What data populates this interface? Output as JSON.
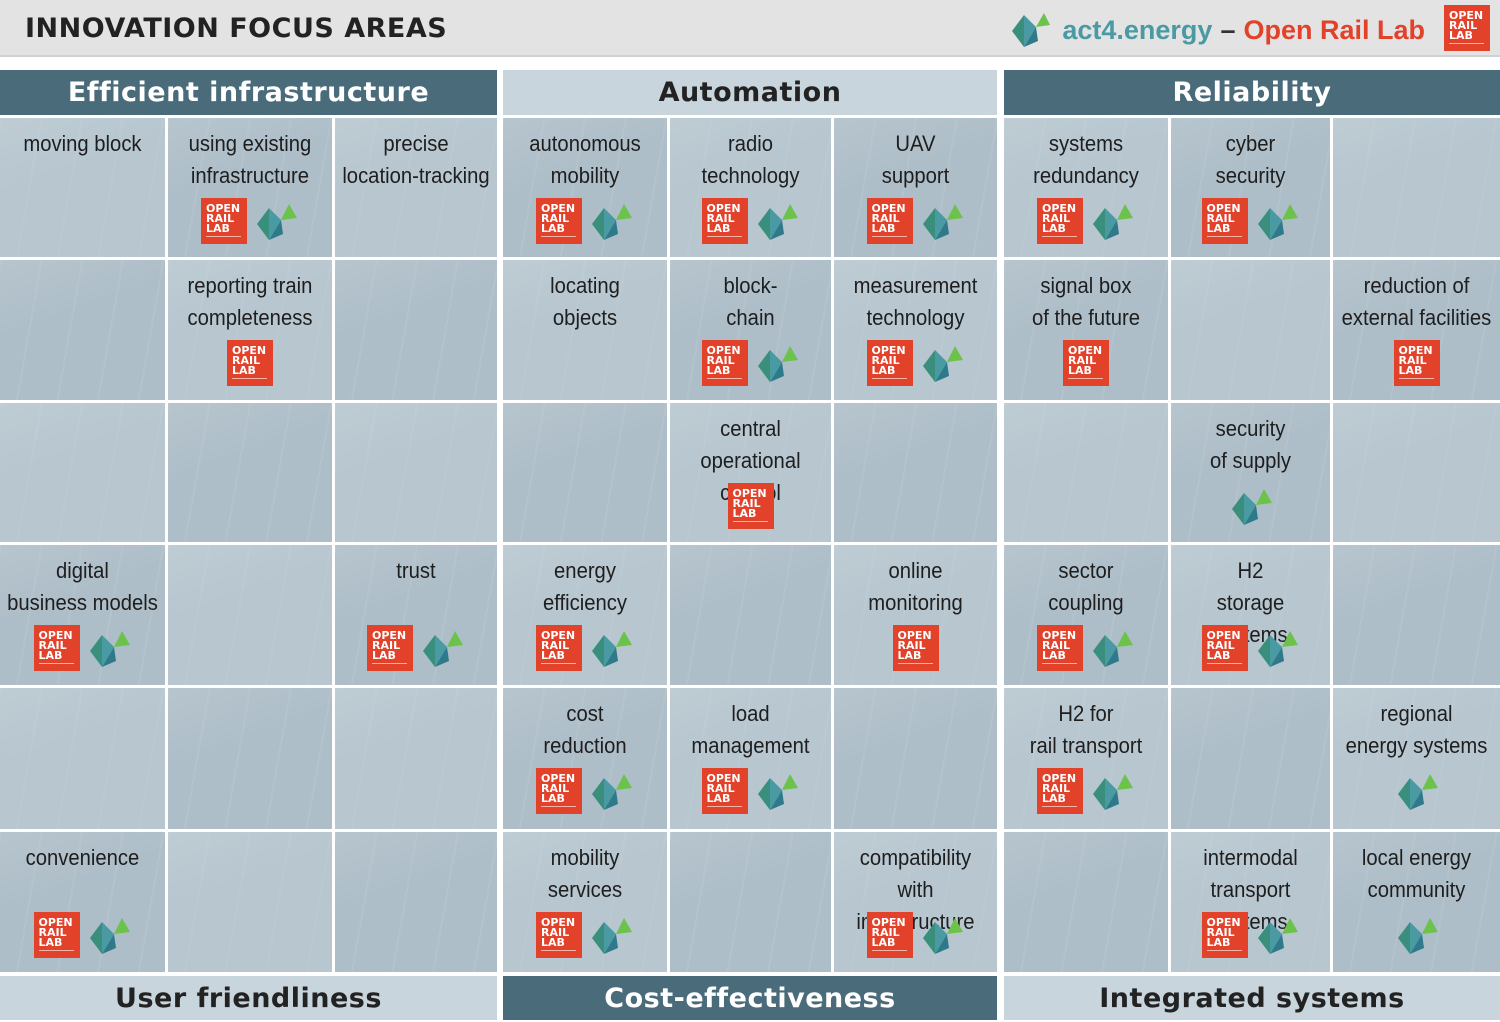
{
  "header": {
    "title": "INNOVATION FOCUS AREAS",
    "brand_act": "act4.energy",
    "brand_dash": "–",
    "brand_orl": "Open Rail Lab"
  },
  "orl_logo_text": [
    "OPEN",
    "RAIL",
    "LAB"
  ],
  "colors": {
    "dark_band": "#4a6b7a",
    "light_band": "#c9d5dc",
    "orl_red": "#e2412a",
    "act_teal": "#4a9aa3",
    "act_green": "#6cc24a"
  },
  "bands_top": [
    {
      "label": "Efficient infrastructure",
      "style": "dark"
    },
    {
      "label": "Automation",
      "style": "light"
    },
    {
      "label": "Reliability",
      "style": "dark"
    }
  ],
  "bands_bottom": [
    {
      "label": "User friendliness",
      "style": "light"
    },
    {
      "label": "Cost-effectiveness",
      "style": "dark"
    },
    {
      "label": "Integrated systems",
      "style": "light"
    }
  ],
  "rows": [
    [
      {
        "label": "moving block",
        "orl": false,
        "act": false
      },
      {
        "label": "using existing\ninfrastructure",
        "orl": true,
        "act": true
      },
      {
        "label": "precise\nlocation-tracking",
        "orl": false,
        "act": false
      },
      {
        "label": "autonomous\nmobility",
        "orl": true,
        "act": true
      },
      {
        "label": "radio\ntechnology",
        "orl": true,
        "act": true
      },
      {
        "label": "UAV\nsupport",
        "orl": true,
        "act": true
      },
      {
        "label": "systems\nredundancy",
        "orl": true,
        "act": true
      },
      {
        "label": "cyber\nsecurity",
        "orl": true,
        "act": true
      },
      {
        "label": "",
        "orl": false,
        "act": false
      }
    ],
    [
      {
        "label": "",
        "orl": false,
        "act": false
      },
      {
        "label": "reporting train\ncompleteness",
        "orl": true,
        "act": false
      },
      {
        "label": "",
        "orl": false,
        "act": false
      },
      {
        "label": "locating\nobjects",
        "orl": false,
        "act": false
      },
      {
        "label": "block-\nchain",
        "orl": true,
        "act": true
      },
      {
        "label": "measurement\ntechnology",
        "orl": true,
        "act": true
      },
      {
        "label": "signal box\nof the future",
        "orl": true,
        "act": false
      },
      {
        "label": "",
        "orl": false,
        "act": false
      },
      {
        "label": "reduction of\nexternal facilities",
        "orl": true,
        "act": false
      }
    ],
    [
      {
        "label": "",
        "orl": false,
        "act": false
      },
      {
        "label": "",
        "orl": false,
        "act": false
      },
      {
        "label": "",
        "orl": false,
        "act": false
      },
      {
        "label": "",
        "orl": false,
        "act": false
      },
      {
        "label": "central\noperational control",
        "orl": true,
        "act": false
      },
      {
        "label": "",
        "orl": false,
        "act": false
      },
      {
        "label": "",
        "orl": false,
        "act": false
      },
      {
        "label": "security\nof supply",
        "orl": false,
        "act": true
      },
      {
        "label": "",
        "orl": false,
        "act": false
      }
    ],
    [
      {
        "label": "digital\nbusiness models",
        "orl": true,
        "act": true
      },
      {
        "label": "",
        "orl": false,
        "act": false
      },
      {
        "label": "trust",
        "orl": true,
        "act": true
      },
      {
        "label": "energy\nefficiency",
        "orl": true,
        "act": true
      },
      {
        "label": "",
        "orl": false,
        "act": false
      },
      {
        "label": "online\nmonitoring",
        "orl": true,
        "act": false
      },
      {
        "label": "sector\ncoupling",
        "orl": true,
        "act": true
      },
      {
        "label": "H2\nstorage systems",
        "orl": true,
        "act": true
      },
      {
        "label": "",
        "orl": false,
        "act": false
      }
    ],
    [
      {
        "label": "",
        "orl": false,
        "act": false
      },
      {
        "label": "",
        "orl": false,
        "act": false
      },
      {
        "label": "",
        "orl": false,
        "act": false
      },
      {
        "label": "cost\nreduction",
        "orl": true,
        "act": true
      },
      {
        "label": "load\nmanagement",
        "orl": true,
        "act": true
      },
      {
        "label": "",
        "orl": false,
        "act": false
      },
      {
        "label": "H2 for\nrail transport",
        "orl": true,
        "act": true
      },
      {
        "label": "",
        "orl": false,
        "act": false
      },
      {
        "label": "regional\nenergy systems",
        "orl": false,
        "act": true
      }
    ],
    [
      {
        "label": "convenience",
        "orl": true,
        "act": true
      },
      {
        "label": "",
        "orl": false,
        "act": false
      },
      {
        "label": "",
        "orl": false,
        "act": false
      },
      {
        "label": "mobility\nservices",
        "orl": true,
        "act": true
      },
      {
        "label": "",
        "orl": false,
        "act": false
      },
      {
        "label": "compatibility with\ninfrastructure",
        "orl": true,
        "act": true
      },
      {
        "label": "",
        "orl": false,
        "act": false
      },
      {
        "label": "intermodal\ntransport systems",
        "orl": true,
        "act": true
      },
      {
        "label": "local energy\ncommunity",
        "orl": false,
        "act": true
      }
    ]
  ]
}
